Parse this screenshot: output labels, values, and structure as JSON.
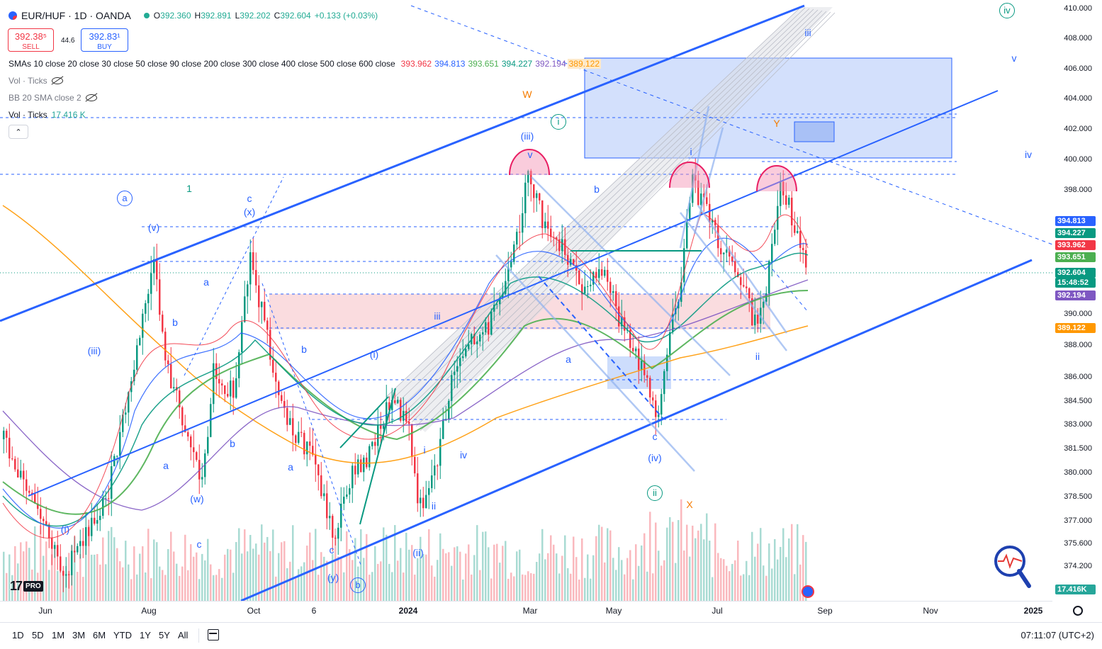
{
  "symbol": {
    "title": "EUR/HUF · 1D · OANDA",
    "ohlc": [
      {
        "k": "O",
        "v": "392.360"
      },
      {
        "k": "H",
        "v": "392.891"
      },
      {
        "k": "L",
        "v": "392.202"
      },
      {
        "k": "C",
        "v": "392.604"
      },
      {
        "k": "",
        "v": "+0.133 (+0.03%)"
      }
    ]
  },
  "trade": {
    "sell_price": "392.38⁵",
    "sell_label": "SELL",
    "spread": "44.6",
    "buy_price": "392.83¹",
    "buy_label": "BUY"
  },
  "indicators": {
    "smas_label": "SMAs 10 close 20 close 30 close 50 close 90 close 200 close 300 close 400 close 500 close 600 close",
    "sma_values": [
      {
        "text": "393.962",
        "color": "#f23645"
      },
      {
        "text": "394.813",
        "color": "#2962ff"
      },
      {
        "text": "393.651",
        "color": "#4caf50"
      },
      {
        "text": "394.227",
        "color": "#089981"
      },
      {
        "text": "392.194",
        "color": "#7e57c2"
      },
      {
        "text": "389.122",
        "color": "#ff9800"
      }
    ],
    "vol_label": "Vol · Ticks",
    "bb_label": "BB 20 SMA close 2",
    "vol2_label": "Vol · Ticks",
    "vol2_value": "17.416 K"
  },
  "price_axis": {
    "ticks": [
      "410.000",
      "408.000",
      "406.000",
      "404.000",
      "402.000",
      "400.000",
      "398.000",
      "390.000",
      "388.000",
      "386.000",
      "384.500",
      "383.000",
      "381.500",
      "380.000",
      "378.500",
      "377.000",
      "375.600",
      "374.200"
    ],
    "badges": [
      {
        "text": "394.813",
        "color": "#2962ff"
      },
      {
        "text": "394.227",
        "color": "#089981"
      },
      {
        "text": "393.962",
        "color": "#f23645"
      },
      {
        "text": "393.651",
        "color": "#4caf50"
      },
      {
        "text": "392.604",
        "color": "#089981"
      },
      {
        "text": "15:48:52",
        "color": "#089981"
      },
      {
        "text": "392.194",
        "color": "#7e57c2"
      },
      {
        "text": "389.122",
        "color": "#ff9800"
      },
      {
        "text": "17.416K",
        "color": "#26a69a"
      }
    ]
  },
  "time_axis": {
    "labels": [
      {
        "text": "Jun",
        "bold": false
      },
      {
        "text": "Aug",
        "bold": false
      },
      {
        "text": "Oct",
        "bold": false
      },
      {
        "text": "6",
        "bold": false
      },
      {
        "text": "2024",
        "bold": true
      },
      {
        "text": "Mar",
        "bold": false
      },
      {
        "text": "May",
        "bold": false
      },
      {
        "text": "Jul",
        "bold": false
      },
      {
        "text": "Sep",
        "bold": false
      },
      {
        "text": "Nov",
        "bold": false
      },
      {
        "text": "2025",
        "bold": true
      }
    ]
  },
  "toolbar": {
    "ranges": [
      "1D",
      "5D",
      "1M",
      "3M",
      "6M",
      "YTD",
      "1Y",
      "5Y",
      "All"
    ],
    "clock": "07:11:07 (UTC+2)"
  },
  "logo": {
    "pro": "PRO"
  },
  "wave_labels": [
    {
      "text": "a",
      "color": "#2962ff",
      "circled": true
    },
    {
      "text": "1",
      "color": "#089981",
      "circled": false
    },
    {
      "text": "(v)",
      "color": "#2962ff",
      "circled": false
    },
    {
      "text": "c",
      "color": "#2962ff",
      "circled": false
    },
    {
      "text": "(x)",
      "color": "#2962ff",
      "circled": false
    },
    {
      "text": "a",
      "color": "#2962ff",
      "circled": false
    },
    {
      "text": "b",
      "color": "#2962ff",
      "circled": false
    },
    {
      "text": "(iii)",
      "color": "#2962ff",
      "circled": false
    },
    {
      "text": "b",
      "color": "#2962ff",
      "circled": false
    },
    {
      "text": "b",
      "color": "#2962ff",
      "circled": false
    },
    {
      "text": "a",
      "color": "#2962ff",
      "circled": false
    },
    {
      "text": "a",
      "color": "#2962ff",
      "circled": false
    },
    {
      "text": "(w)",
      "color": "#2962ff",
      "circled": false
    },
    {
      "text": "(i)",
      "color": "#2962ff",
      "circled": false
    },
    {
      "text": "c",
      "color": "#2962ff",
      "circled": false
    },
    {
      "text": "c",
      "color": "#2962ff",
      "circled": false
    },
    {
      "text": "(y)",
      "color": "#2962ff",
      "circled": false
    },
    {
      "text": "b",
      "color": "#2962ff",
      "circled": true
    },
    {
      "text": "(i)",
      "color": "#2962ff",
      "circled": false
    },
    {
      "text": "iii",
      "color": "#2962ff",
      "circled": false
    },
    {
      "text": "i",
      "color": "#2962ff",
      "circled": false
    },
    {
      "text": "iv",
      "color": "#2962ff",
      "circled": false
    },
    {
      "text": "ii",
      "color": "#2962ff",
      "circled": false
    },
    {
      "text": "(ii)",
      "color": "#2962ff",
      "circled": false
    },
    {
      "text": "W",
      "color": "#f57c00",
      "circled": false
    },
    {
      "text": "(iii)",
      "color": "#2962ff",
      "circled": false
    },
    {
      "text": "i",
      "color": "#089981",
      "circled": true
    },
    {
      "text": "v",
      "color": "#2962ff",
      "circled": false
    },
    {
      "text": "b",
      "color": "#2962ff",
      "circled": false
    },
    {
      "text": "a",
      "color": "#2962ff",
      "circled": false
    },
    {
      "text": "c",
      "color": "#2962ff",
      "circled": false
    },
    {
      "text": "(iv)",
      "color": "#2962ff",
      "circled": false
    },
    {
      "text": "ii",
      "color": "#089981",
      "circled": true
    },
    {
      "text": "X",
      "color": "#f57c00",
      "circled": false
    },
    {
      "text": "i",
      "color": "#2962ff",
      "circled": false
    },
    {
      "text": "Y",
      "color": "#f57c00",
      "circled": false
    },
    {
      "text": "ii",
      "color": "#2962ff",
      "circled": false
    },
    {
      "text": "iii",
      "color": "#2962ff",
      "circled": false
    },
    {
      "text": "iv",
      "color": "#089981",
      "circled": true
    },
    {
      "text": "v",
      "color": "#2962ff",
      "circled": false
    },
    {
      "text": "iv",
      "color": "#2962ff",
      "circled": false
    }
  ],
  "colors": {
    "up": "#089981",
    "down": "#f23645",
    "channel": "#2962ff",
    "zone_blue": "#bbd0fb",
    "zone_pink": "#f8cdd2"
  }
}
